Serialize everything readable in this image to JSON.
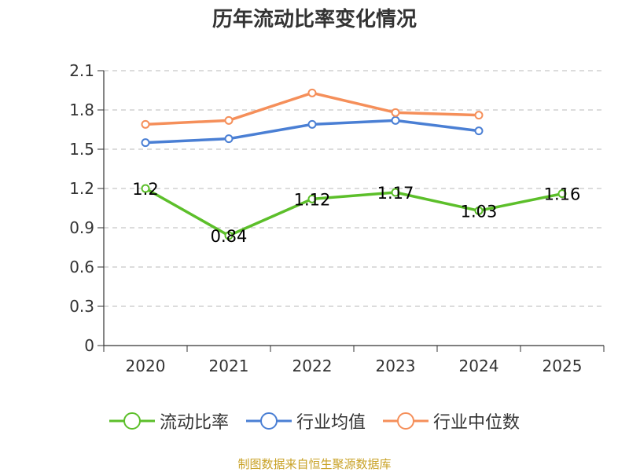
{
  "chart_data": {
    "type": "line",
    "title": "历年流动比率变化情况",
    "categories": [
      "2020",
      "2021",
      "2022",
      "2023",
      "2024",
      "2025"
    ],
    "y_ticks": [
      "0",
      "0.3",
      "0.6",
      "0.9",
      "1.2",
      "1.5",
      "1.8",
      "2.1"
    ],
    "ylim": [
      0,
      2.1
    ],
    "grid": true,
    "legend_position": "bottom",
    "series": [
      {
        "name": "流动比率",
        "color": "#5cbf2a",
        "values": [
          1.2,
          0.84,
          1.12,
          1.17,
          1.03,
          1.16
        ],
        "labels": [
          "1.2",
          "0.84",
          "1.12",
          "1.17",
          "1.03",
          "1.16"
        ]
      },
      {
        "name": "行业均值",
        "color": "#4a7fd4",
        "values": [
          1.55,
          1.58,
          1.69,
          1.72,
          1.64,
          null
        ]
      },
      {
        "name": "行业中位数",
        "color": "#f58f5a",
        "values": [
          1.69,
          1.72,
          1.93,
          1.78,
          1.76,
          null
        ]
      }
    ]
  },
  "source": {
    "text": "制图数据来自恒生聚源数据库",
    "color": "#c9a227"
  }
}
